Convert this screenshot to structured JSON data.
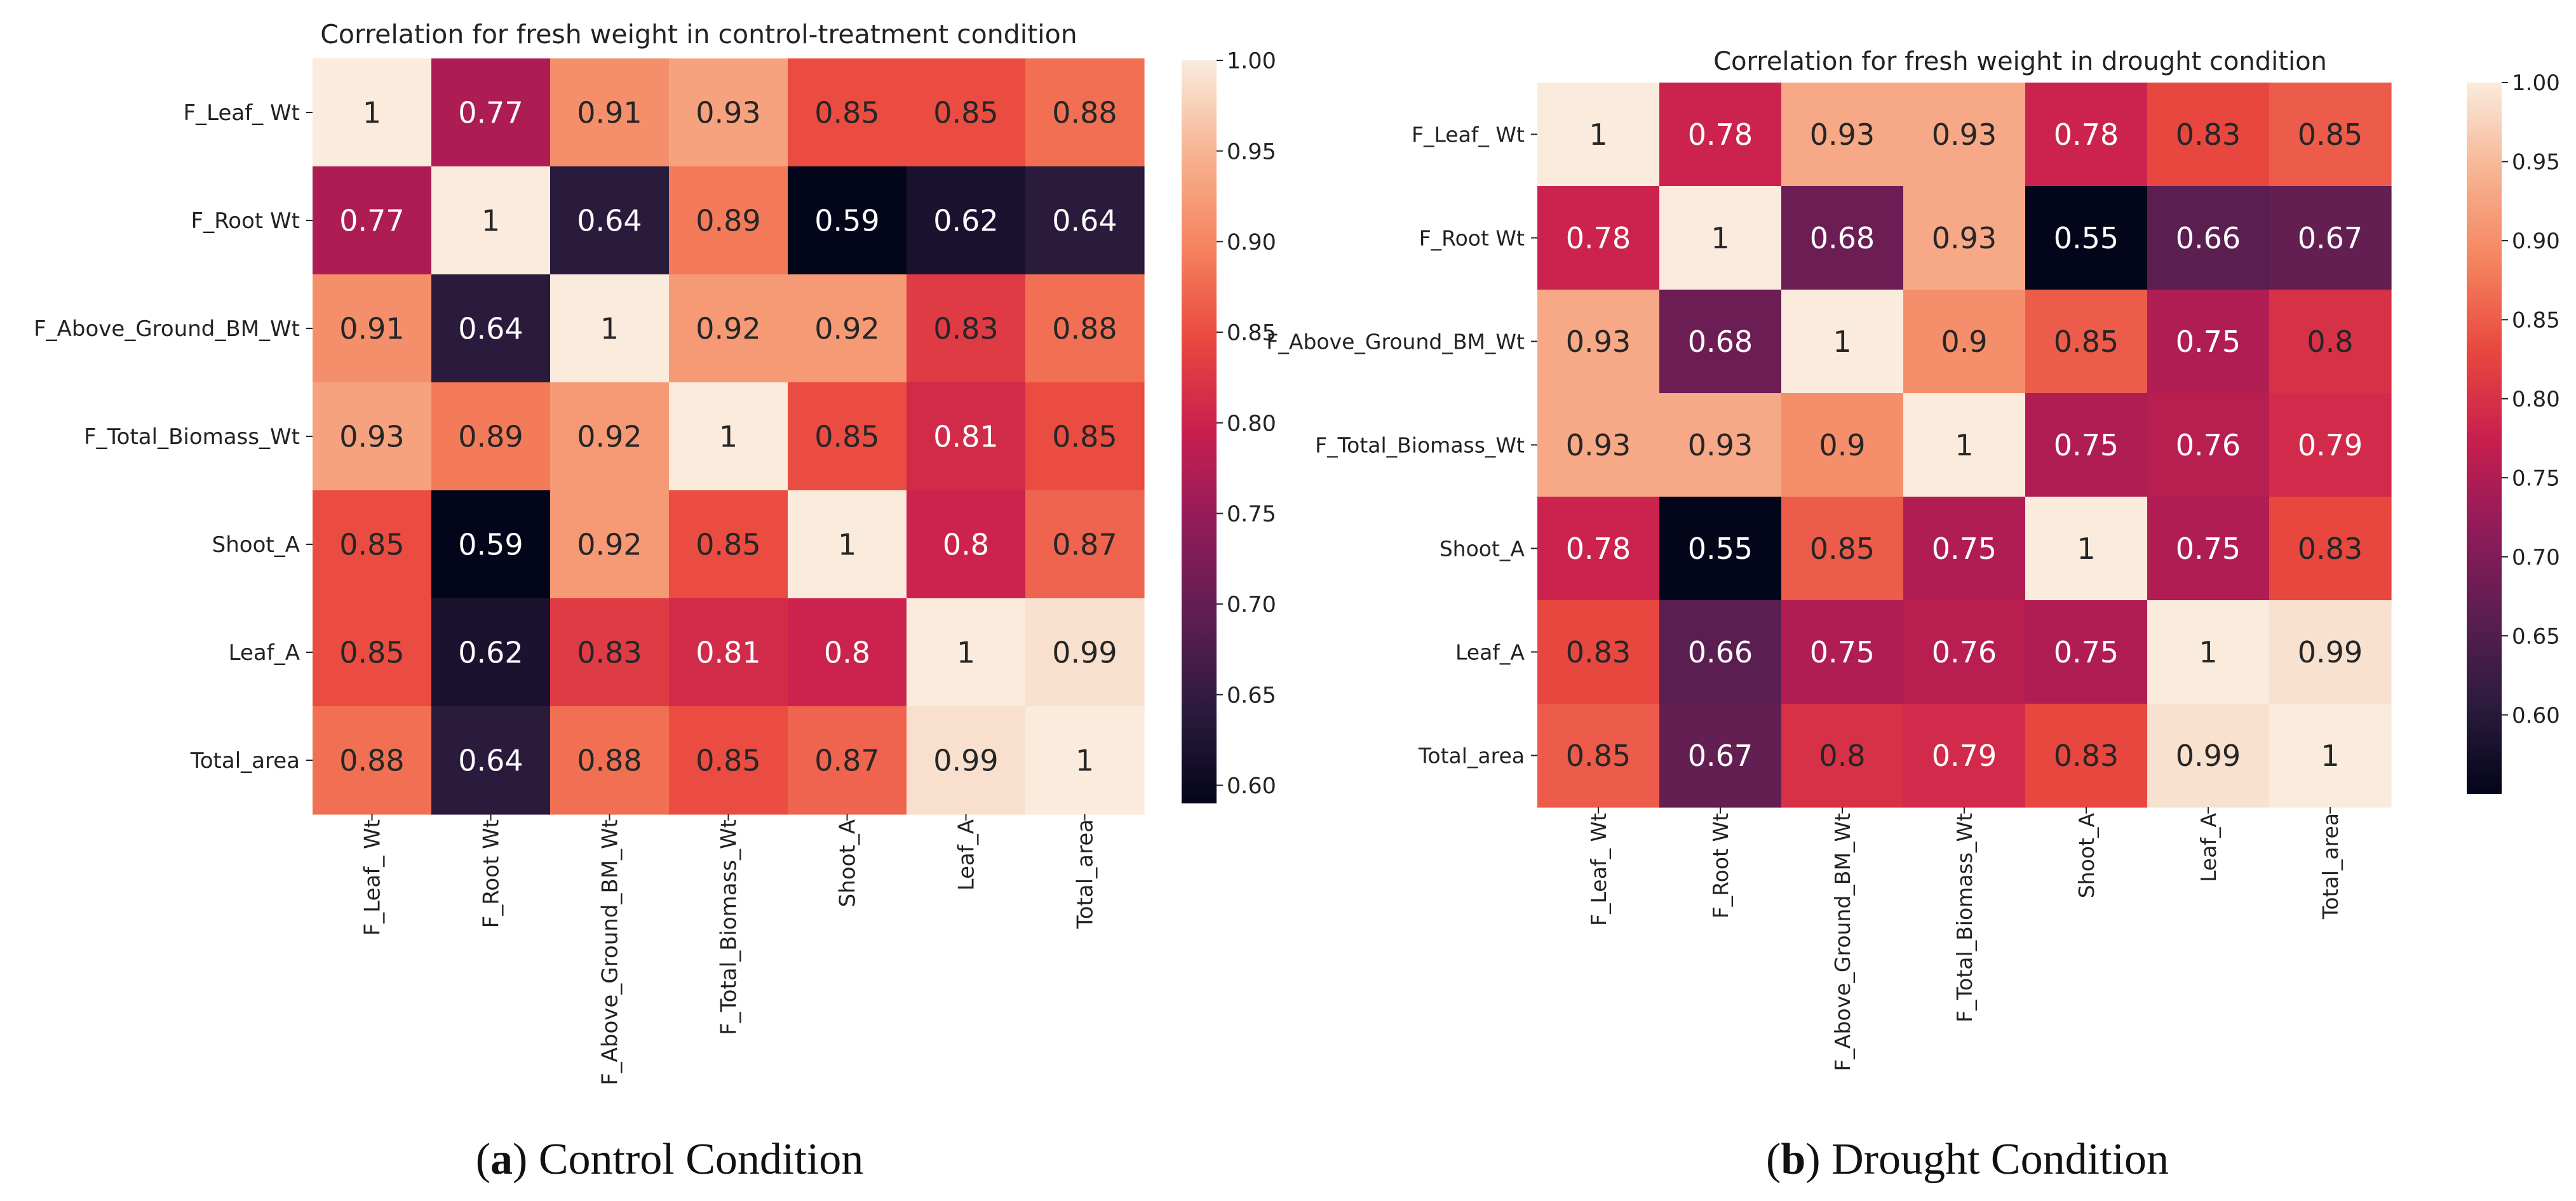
{
  "chart_data": [
    {
      "type": "heatmap",
      "title": "Correlation for fresh weight in control-treatment  condition",
      "caption": {
        "open": "(",
        "letter": "a",
        "close": ")",
        "text": " Control Condition"
      },
      "row_labels": [
        "F_Leaf_ Wt",
        "F_Root Wt",
        "F_Above_Ground_BM_Wt",
        "F_Total_Biomass_Wt",
        "Shoot_A",
        "Leaf_A",
        "Total_area"
      ],
      "col_labels": [
        "F_Leaf_ Wt",
        "F_Root Wt",
        "F_Above_Ground_BM_Wt",
        "F_Total_Biomass_Wt",
        "Shoot_A",
        "Leaf_A",
        "Total_area"
      ],
      "values": [
        [
          1,
          0.77,
          0.91,
          0.93,
          0.85,
          0.85,
          0.88
        ],
        [
          0.77,
          1,
          0.64,
          0.89,
          0.59,
          0.62,
          0.64
        ],
        [
          0.91,
          0.64,
          1,
          0.92,
          0.92,
          0.83,
          0.88
        ],
        [
          0.93,
          0.89,
          0.92,
          1,
          0.85,
          0.81,
          0.85
        ],
        [
          0.85,
          0.59,
          0.92,
          0.85,
          1,
          0.8,
          0.87
        ],
        [
          0.85,
          0.62,
          0.83,
          0.81,
          0.8,
          1,
          0.99
        ],
        [
          0.88,
          0.64,
          0.88,
          0.85,
          0.87,
          0.99,
          1
        ]
      ],
      "labels": [
        [
          "1",
          "0.77",
          "0.91",
          "0.93",
          "0.85",
          "0.85",
          "0.88"
        ],
        [
          "0.77",
          "1",
          "0.64",
          "0.89",
          "0.59",
          "0.62",
          "0.64"
        ],
        [
          "0.91",
          "0.64",
          "1",
          "0.92",
          "0.92",
          "0.83",
          "0.88"
        ],
        [
          "0.93",
          "0.89",
          "0.92",
          "1",
          "0.85",
          "0.81",
          "0.85"
        ],
        [
          "0.85",
          "0.59",
          "0.92",
          "0.85",
          "1",
          "0.8",
          "0.87"
        ],
        [
          "0.85",
          "0.62",
          "0.83",
          "0.81",
          "0.8",
          "1",
          "0.99"
        ],
        [
          "0.88",
          "0.64",
          "0.88",
          "0.85",
          "0.87",
          "0.99",
          "1"
        ]
      ],
      "colorbar": {
        "vmin": 0.59,
        "vmax": 1.0,
        "ticks": [
          1.0,
          0.95,
          0.9,
          0.85,
          0.8,
          0.75,
          0.7,
          0.65,
          0.6
        ],
        "tick_labels": [
          "1.00",
          "0.95",
          "0.90",
          "0.85",
          "0.80",
          "0.75",
          "0.70",
          "0.65",
          "0.60"
        ]
      }
    },
    {
      "type": "heatmap",
      "title": "Correlation for fresh weight in drought condition",
      "caption": {
        "open": "(",
        "letter": "b",
        "close": ")",
        "text": " Drought Condition"
      },
      "row_labels": [
        "F_Leaf_ Wt",
        "F_Root Wt",
        "F_Above_Ground_BM_Wt",
        "F_Total_Biomass_Wt",
        "Shoot_A",
        "Leaf_A",
        "Total_area"
      ],
      "col_labels": [
        "F_Leaf_ Wt",
        "F_Root Wt",
        "F_Above_Ground_BM_Wt",
        "F_Total_Biomass_Wt",
        "Shoot_A",
        "Leaf_A",
        "Total_area"
      ],
      "values": [
        [
          1,
          0.78,
          0.93,
          0.93,
          0.78,
          0.83,
          0.85
        ],
        [
          0.78,
          1,
          0.68,
          0.93,
          0.55,
          0.66,
          0.67
        ],
        [
          0.93,
          0.68,
          1,
          0.9,
          0.85,
          0.75,
          0.8
        ],
        [
          0.93,
          0.93,
          0.9,
          1,
          0.75,
          0.76,
          0.79
        ],
        [
          0.78,
          0.55,
          0.85,
          0.75,
          1,
          0.75,
          0.83
        ],
        [
          0.83,
          0.66,
          0.75,
          0.76,
          0.75,
          1,
          0.99
        ],
        [
          0.85,
          0.67,
          0.8,
          0.79,
          0.83,
          0.99,
          1
        ]
      ],
      "labels": [
        [
          "1",
          "0.78",
          "0.93",
          "0.93",
          "0.78",
          "0.83",
          "0.85"
        ],
        [
          "0.78",
          "1",
          "0.68",
          "0.93",
          "0.55",
          "0.66",
          "0.67"
        ],
        [
          "0.93",
          "0.68",
          "1",
          "0.9",
          "0.85",
          "0.75",
          "0.8"
        ],
        [
          "0.93",
          "0.93",
          "0.9",
          "1",
          "0.75",
          "0.76",
          "0.79"
        ],
        [
          "0.78",
          "0.55",
          "0.85",
          "0.75",
          "1",
          "0.75",
          "0.83"
        ],
        [
          "0.83",
          "0.66",
          "0.75",
          "0.76",
          "0.75",
          "1",
          "0.99"
        ],
        [
          "0.85",
          "0.67",
          "0.8",
          "0.79",
          "0.83",
          "0.99",
          "1"
        ]
      ],
      "colorbar": {
        "vmin": 0.55,
        "vmax": 1.0,
        "ticks": [
          1.0,
          0.95,
          0.9,
          0.85,
          0.8,
          0.75,
          0.7,
          0.65,
          0.6
        ],
        "tick_labels": [
          "1.00",
          "0.95",
          "0.90",
          "0.85",
          "0.80",
          "0.75",
          "0.70",
          "0.65",
          "0.60"
        ]
      }
    }
  ],
  "colormap": {
    "name": "rocket",
    "stops": [
      "#03051a",
      "#2b1b3d",
      "#5c1e51",
      "#911b5a",
      "#c81f4e",
      "#e9483f",
      "#f5845f",
      "#f7b392",
      "#faebdd"
    ]
  }
}
